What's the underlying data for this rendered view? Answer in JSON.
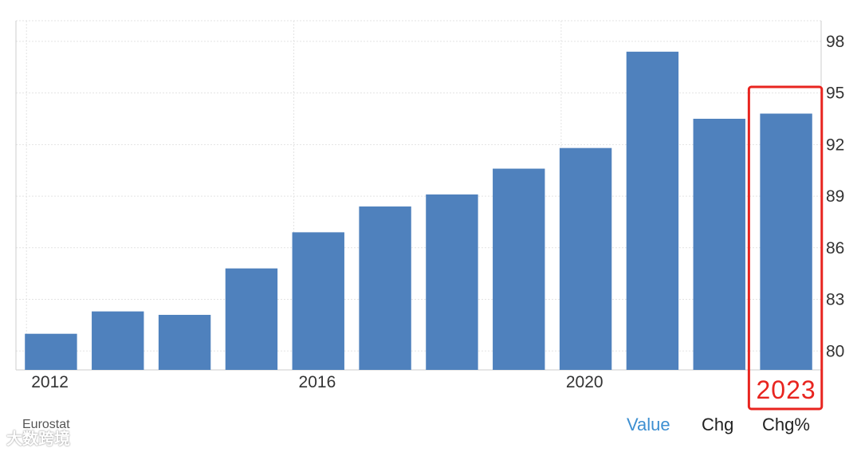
{
  "source_label": "Eurostat",
  "watermark": "大数跨境",
  "tabs": [
    {
      "label": "Value",
      "active": true
    },
    {
      "label": "Chg",
      "active": false
    },
    {
      "label": "Chg%",
      "active": false
    }
  ],
  "highlight": {
    "label": "2023",
    "color": "#e8241f"
  },
  "colors": {
    "bar": "#4f81bd",
    "grid": "#e3e3e3",
    "axis": "#cccccc"
  },
  "chart_data": {
    "type": "bar",
    "categories": [
      "2012",
      "2013",
      "2014",
      "2015",
      "2016",
      "2017",
      "2018",
      "2019",
      "2020",
      "2021",
      "2022",
      "2023"
    ],
    "x_tick_labels": [
      "2012",
      "2016",
      "2020"
    ],
    "values": [
      81.0,
      82.3,
      82.1,
      84.8,
      86.9,
      88.4,
      89.1,
      90.6,
      91.8,
      97.4,
      93.5,
      93.8
    ],
    "y_ticks": [
      80,
      83,
      86,
      89,
      92,
      95,
      98
    ],
    "ylim": [
      78.9,
      99.2
    ],
    "grid": true,
    "y_axis_side": "right",
    "title": "",
    "xlabel": "",
    "ylabel": ""
  }
}
